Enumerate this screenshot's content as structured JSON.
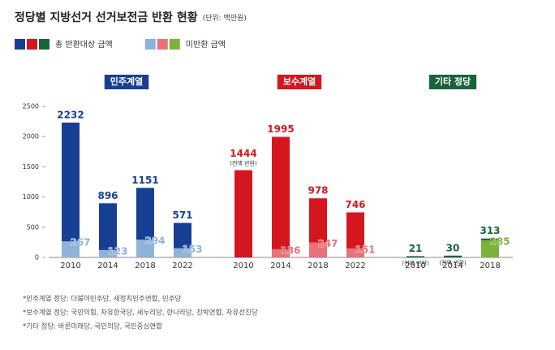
{
  "chart_data": {
    "type": "bar",
    "title": "정당별 지방선거 선거보전금 반환 현황",
    "subtitle": "(단위: 백만원)",
    "legend": [
      {
        "label": "총 반환대상 금액",
        "colors": [
          "#173f94",
          "#d6161f",
          "#17643a"
        ]
      },
      {
        "label": "미반환 금액",
        "colors": [
          "#8fb2d8",
          "#e7727a",
          "#7cb23c"
        ]
      }
    ],
    "ylim": [
      0,
      2500
    ],
    "yticks": [
      0,
      500,
      1000,
      1500,
      2000,
      2500
    ],
    "groups": [
      {
        "name": "민주계열",
        "color": "#173f94",
        "light_color": "#8fb2d8",
        "categories": [
          "2010",
          "2014",
          "2018",
          "2022"
        ],
        "total": [
          2232,
          896,
          1151,
          571
        ],
        "unreturned": [
          267,
          123,
          294,
          153
        ],
        "notes": [
          null,
          null,
          null,
          null
        ]
      },
      {
        "name": "보수계열",
        "color": "#d6161f",
        "light_color": "#e7727a",
        "categories": [
          "2010",
          "2014",
          "2018",
          "2022"
        ],
        "total": [
          1444,
          1995,
          978,
          746
        ],
        "unreturned": [
          null,
          136,
          247,
          151
        ],
        "notes": [
          "(전액 반환)",
          null,
          null,
          null
        ]
      },
      {
        "name": "기타 정당",
        "color": "#17643a",
        "light_color": "#7cb23c",
        "categories": [
          "2010",
          "2014",
          "2018"
        ],
        "total": [
          21,
          30,
          313
        ],
        "unreturned": [
          null,
          null,
          285
        ],
        "notes": [
          "(전액 반환)",
          "(전액 반환)",
          null
        ]
      }
    ],
    "footnotes": [
      "*민주계열 정당: 더불어민주당, 새정치민주연합, 민주당",
      "*보수계열 정당: 국민의힘, 자유한국당, 새누리당, 한나라당, 친박연합, 자유선진당",
      "*기타 정당: 바른미래당, 국민의당, 국민중심연합"
    ]
  }
}
